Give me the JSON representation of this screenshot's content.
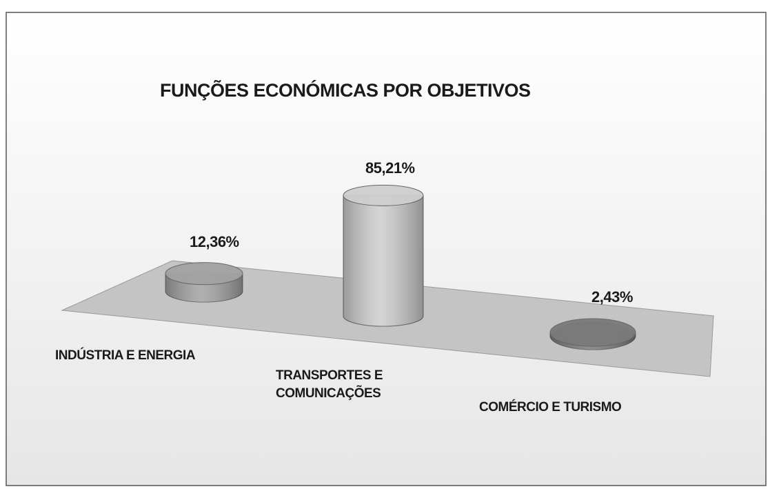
{
  "chart_data": {
    "type": "cylinder",
    "title": "FUNÇÕES ECONÓMICAS POR OBJETIVOS",
    "categories": [
      "INDÚSTRIA E ENERGIA",
      "TRANSPORTES E COMUNICAÇÕES",
      "COMÉRCIO E TURISMO"
    ],
    "values": [
      12.36,
      85.21,
      2.43
    ],
    "value_labels": [
      "12,36%",
      "85,21%",
      "2,43%"
    ],
    "colors": [
      "#a2a2a2",
      "#cdcdcd",
      "#7a7a7a"
    ]
  }
}
